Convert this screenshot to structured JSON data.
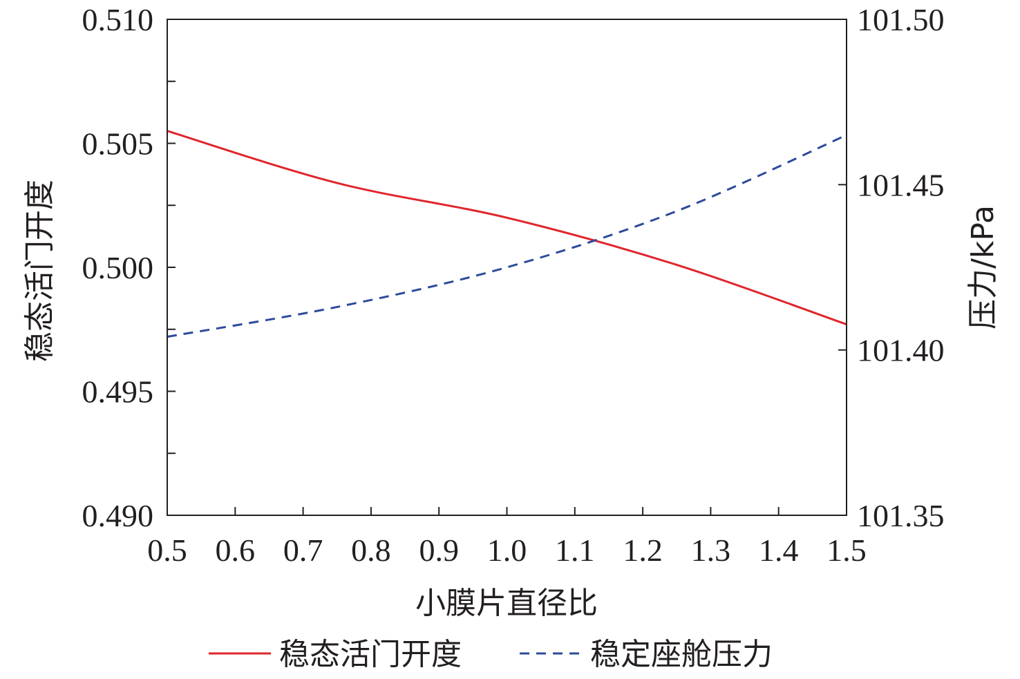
{
  "chart_data": {
    "type": "line",
    "xlabel": "小膜片直径比",
    "ylabel": "稳态活门开度",
    "y2label": "压力/kPa",
    "xlim": [
      0.5,
      1.5
    ],
    "ylim": [
      0.49,
      0.51
    ],
    "y2lim": [
      101.35,
      101.5
    ],
    "x_ticks": [
      "0.5",
      "0.6",
      "0.7",
      "0.8",
      "0.9",
      "1.0",
      "1.1",
      "1.2",
      "1.3",
      "1.4",
      "1.5"
    ],
    "y_ticks": [
      "0.490",
      "0.495",
      "0.500",
      "0.505",
      "0.510"
    ],
    "y2_ticks": [
      "101.35",
      "101.40",
      "101.45",
      "101.50"
    ],
    "legend_position": "bottom",
    "series": [
      {
        "name": "稳态活门开度",
        "axis": "left",
        "color": "#e0252b",
        "style": "solid",
        "x": [
          0.5,
          0.75,
          1.0,
          1.25,
          1.5
        ],
        "y": [
          0.5055,
          0.5034,
          0.502,
          0.5001,
          0.4977
        ]
      },
      {
        "name": "稳定座舱压力",
        "axis": "right",
        "color": "#2e4a9a",
        "style": "dashed",
        "x": [
          0.5,
          0.75,
          1.0,
          1.25,
          1.5
        ],
        "y": [
          101.404,
          101.413,
          101.425,
          101.442,
          101.465
        ]
      }
    ]
  }
}
